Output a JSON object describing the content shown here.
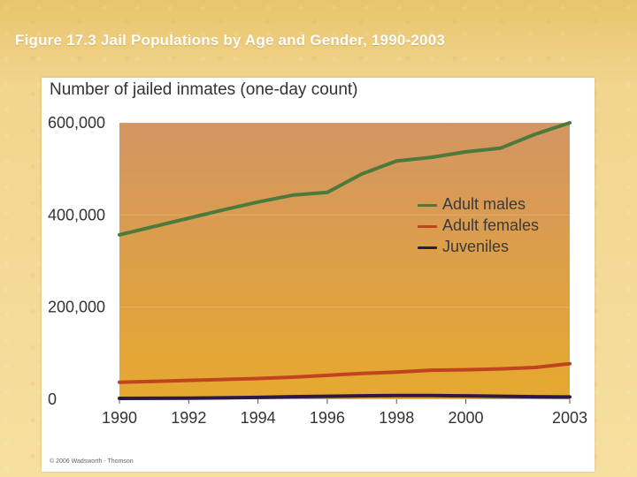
{
  "slide": {
    "title": "Figure 17.3 Jail Populations by Age and Gender, 1990-2003"
  },
  "figure": {
    "credit": "© 2006 Wadsworth - Thomson"
  },
  "colors": {
    "plot_top": "#d39563",
    "plot_bottom": "#e6a92f",
    "adult_males": "#4b7a3c",
    "adult_females": "#c0441f",
    "juveniles": "#2b1a48"
  },
  "chart_data": {
    "type": "line",
    "title": "Number of jailed inmates (one-day count)",
    "xlabel": "",
    "ylabel": "",
    "xlim": [
      1990,
      2003
    ],
    "ylim": [
      0,
      600000
    ],
    "x": [
      1990,
      1991,
      1992,
      1993,
      1994,
      1995,
      1996,
      1997,
      1998,
      1999,
      2000,
      2001,
      2002,
      2003
    ],
    "x_ticks": [
      1990,
      1992,
      1994,
      1996,
      1998,
      2000,
      2003
    ],
    "x_tick_labels": [
      "1990",
      "1992",
      "1994",
      "1996",
      "1998",
      "2000",
      "2003"
    ],
    "y_ticks": [
      0,
      200000,
      400000,
      600000
    ],
    "y_tick_labels": [
      "0",
      "200,000",
      "400,000",
      "600,000"
    ],
    "legend_position": "right-middle",
    "series": [
      {
        "name": "Adult males",
        "color": "#4b7a3c",
        "values": [
          357000,
          375000,
          393000,
          411000,
          428000,
          443000,
          449000,
          489000,
          517000,
          525000,
          537000,
          545000,
          575000,
          600000
        ]
      },
      {
        "name": "Adult females",
        "color": "#c0441f",
        "values": [
          37000,
          39000,
          41000,
          43000,
          45000,
          48000,
          52000,
          56000,
          59000,
          63000,
          64000,
          66000,
          69000,
          77000
        ]
      },
      {
        "name": "Juveniles",
        "color": "#2b1a48",
        "values": [
          2000,
          2200,
          2500,
          3000,
          4000,
          5500,
          6500,
          7500,
          8000,
          8000,
          7500,
          6500,
          5500,
          5000
        ]
      }
    ]
  }
}
